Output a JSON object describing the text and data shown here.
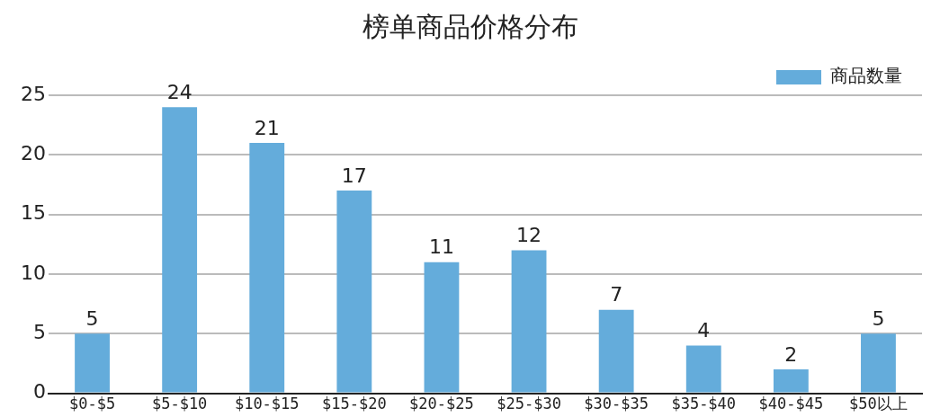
{
  "chart_data": {
    "type": "bar",
    "title": "榜单商品价格分布",
    "categories": [
      "$0-$5",
      "$5-$10",
      "$10-$15",
      "$15-$20",
      "$20-$25",
      "$25-$30",
      "$30-$35",
      "$35-$40",
      "$40-$45",
      "$50以上"
    ],
    "series": [
      {
        "name": "商品数量",
        "color": "#64acdb",
        "values": [
          5,
          24,
          21,
          17,
          11,
          12,
          7,
          4,
          2,
          5
        ]
      }
    ],
    "ylim": [
      0,
      25
    ],
    "yticks": [
      0,
      5,
      10,
      15,
      20,
      25
    ],
    "grid": "y",
    "legend": "top right",
    "data_labels": true
  }
}
